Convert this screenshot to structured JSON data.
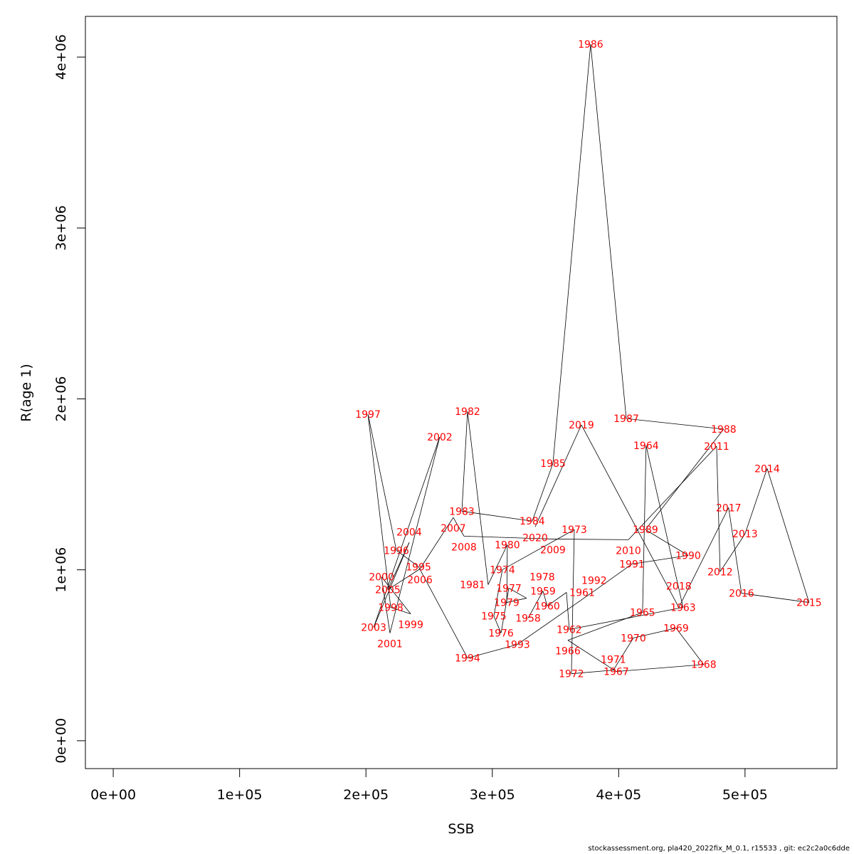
{
  "chart_data": {
    "type": "line",
    "title": "",
    "xlabel": "SSB",
    "ylabel": "R(age 1)",
    "xlim": [
      0,
      550700
    ],
    "ylim": [
      0,
      4075000
    ],
    "x_ticks": [
      0,
      100000,
      200000,
      300000,
      400000,
      500000
    ],
    "x_tick_labels": [
      "0e+00",
      "1e+05",
      "2e+05",
      "3e+05",
      "4e+05",
      "5e+05"
    ],
    "y_ticks": [
      0,
      1000000,
      2000000,
      3000000,
      4000000
    ],
    "y_tick_labels": [
      "0e+00",
      "1e+06",
      "2e+06",
      "3e+06",
      "4e+06"
    ],
    "grid": false,
    "line_color": "#000000",
    "label_color": "#ff0000",
    "points": [
      {
        "year": "1958",
        "x": 328300,
        "y": 717000
      },
      {
        "year": "1959",
        "x": 340100,
        "y": 876000
      },
      {
        "year": "1960",
        "x": 343500,
        "y": 788000
      },
      {
        "year": "1961",
        "x": 358700,
        "y": 868000
      },
      {
        "year": "1962",
        "x": 360900,
        "y": 651000
      },
      {
        "year": "1963",
        "x": 451000,
        "y": 780000
      },
      {
        "year": "1964",
        "x": 421700,
        "y": 1727000
      },
      {
        "year": "1965",
        "x": 418900,
        "y": 751000
      },
      {
        "year": "1966",
        "x": 359800,
        "y": 588000
      },
      {
        "year": "1967",
        "x": 398100,
        "y": 405000
      },
      {
        "year": "1968",
        "x": 467300,
        "y": 446000
      },
      {
        "year": "1969",
        "x": 445400,
        "y": 659000
      },
      {
        "year": "1970",
        "x": 411600,
        "y": 601000
      },
      {
        "year": "1971",
        "x": 395800,
        "y": 413000
      },
      {
        "year": "1972",
        "x": 362600,
        "y": 392000
      },
      {
        "year": "1973",
        "x": 364900,
        "y": 1235000
      },
      {
        "year": "1974",
        "x": 308000,
        "y": 1001000
      },
      {
        "year": "1975",
        "x": 301200,
        "y": 730000
      },
      {
        "year": "1976",
        "x": 306900,
        "y": 630000
      },
      {
        "year": "1977",
        "x": 313100,
        "y": 893000
      },
      {
        "year": "1978",
        "x": 327100,
        "y": 834000
      },
      {
        "year": "1979",
        "x": 311400,
        "y": 809000
      },
      {
        "year": "1980",
        "x": 311900,
        "y": 1147000
      },
      {
        "year": "1981",
        "x": 296700,
        "y": 913000
      },
      {
        "year": "1982",
        "x": 280400,
        "y": 1927000
      },
      {
        "year": "1983",
        "x": 275900,
        "y": 1343000
      },
      {
        "year": "1984",
        "x": 331600,
        "y": 1285000
      },
      {
        "year": "1985",
        "x": 348000,
        "y": 1623000
      },
      {
        "year": "1986",
        "x": 377800,
        "y": 4075000
      },
      {
        "year": "1987",
        "x": 406000,
        "y": 1885000
      },
      {
        "year": "1988",
        "x": 483100,
        "y": 1823000
      },
      {
        "year": "1989",
        "x": 421200,
        "y": 1235000
      },
      {
        "year": "1990",
        "x": 455000,
        "y": 1084000
      },
      {
        "year": "1991",
        "x": 410500,
        "y": 1034000
      },
      {
        "year": "1992",
        "x": 380600,
        "y": 876000
      },
      {
        "year": "1993",
        "x": 319800,
        "y": 563000
      },
      {
        "year": "1994",
        "x": 280400,
        "y": 484000
      },
      {
        "year": "1995",
        "x": 241600,
        "y": 1018000
      },
      {
        "year": "1996",
        "x": 224100,
        "y": 1114000
      },
      {
        "year": "1997",
        "x": 201600,
        "y": 1910000
      },
      {
        "year": "1998",
        "x": 219600,
        "y": 780000
      },
      {
        "year": "1999",
        "x": 235400,
        "y": 742000
      },
      {
        "year": "2000",
        "x": 212300,
        "y": 959000
      },
      {
        "year": "2001",
        "x": 219000,
        "y": 630000
      },
      {
        "year": "2002",
        "x": 258400,
        "y": 1777000
      },
      {
        "year": "2003",
        "x": 206100,
        "y": 663000
      },
      {
        "year": "2004",
        "x": 234200,
        "y": 1160000
      },
      {
        "year": "2005",
        "x": 217300,
        "y": 884000
      },
      {
        "year": "2006",
        "x": 242700,
        "y": 1005000
      },
      {
        "year": "2007",
        "x": 269100,
        "y": 1306000
      },
      {
        "year": "2008",
        "x": 277600,
        "y": 1197000
      },
      {
        "year": "2009",
        "x": 348000,
        "y": 1180000
      },
      {
        "year": "2010",
        "x": 407700,
        "y": 1176000
      },
      {
        "year": "2011",
        "x": 477500,
        "y": 1723000
      },
      {
        "year": "2012",
        "x": 480300,
        "y": 989000
      },
      {
        "year": "2013",
        "x": 500000,
        "y": 1210000
      },
      {
        "year": "2014",
        "x": 517500,
        "y": 1593000
      },
      {
        "year": "2015",
        "x": 550700,
        "y": 809000
      },
      {
        "year": "2016",
        "x": 497200,
        "y": 863000
      },
      {
        "year": "2017",
        "x": 487000,
        "y": 1364000
      },
      {
        "year": "2018",
        "x": 447600,
        "y": 780000
      },
      {
        "year": "2019",
        "x": 370500,
        "y": 1848000
      },
      {
        "year": "2020",
        "x": 333900,
        "y": 1251000
      }
    ]
  },
  "footer": "stockassessment.org, pla420_2022fix_M_0.1, r15533 , git: ec2c2a0c6dde"
}
